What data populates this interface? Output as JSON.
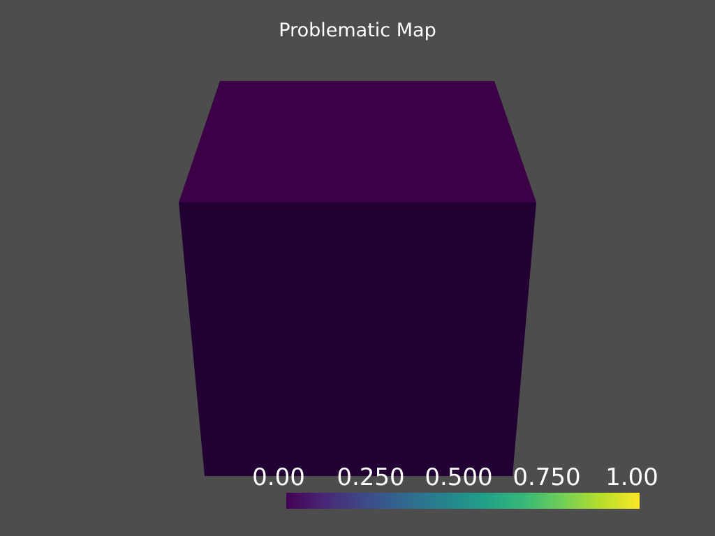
{
  "title": "Problematic Map",
  "colors": {
    "background": "#4d4d4d",
    "cube_top_face": "#3b0045",
    "cube_front_face": "#230033",
    "text": "#ffffff"
  },
  "colormap": {
    "name": "viridis",
    "stops": [
      "#440154",
      "#482878",
      "#3e4989",
      "#31688e",
      "#26828e",
      "#1f9e89",
      "#35b779",
      "#6ece58",
      "#b5de2b",
      "#fde725"
    ]
  },
  "scalar_bar": {
    "range": [
      0.0,
      1.0
    ],
    "tick_labels": [
      "0.00",
      "0.250",
      "0.500",
      "0.750",
      "1.00"
    ]
  }
}
